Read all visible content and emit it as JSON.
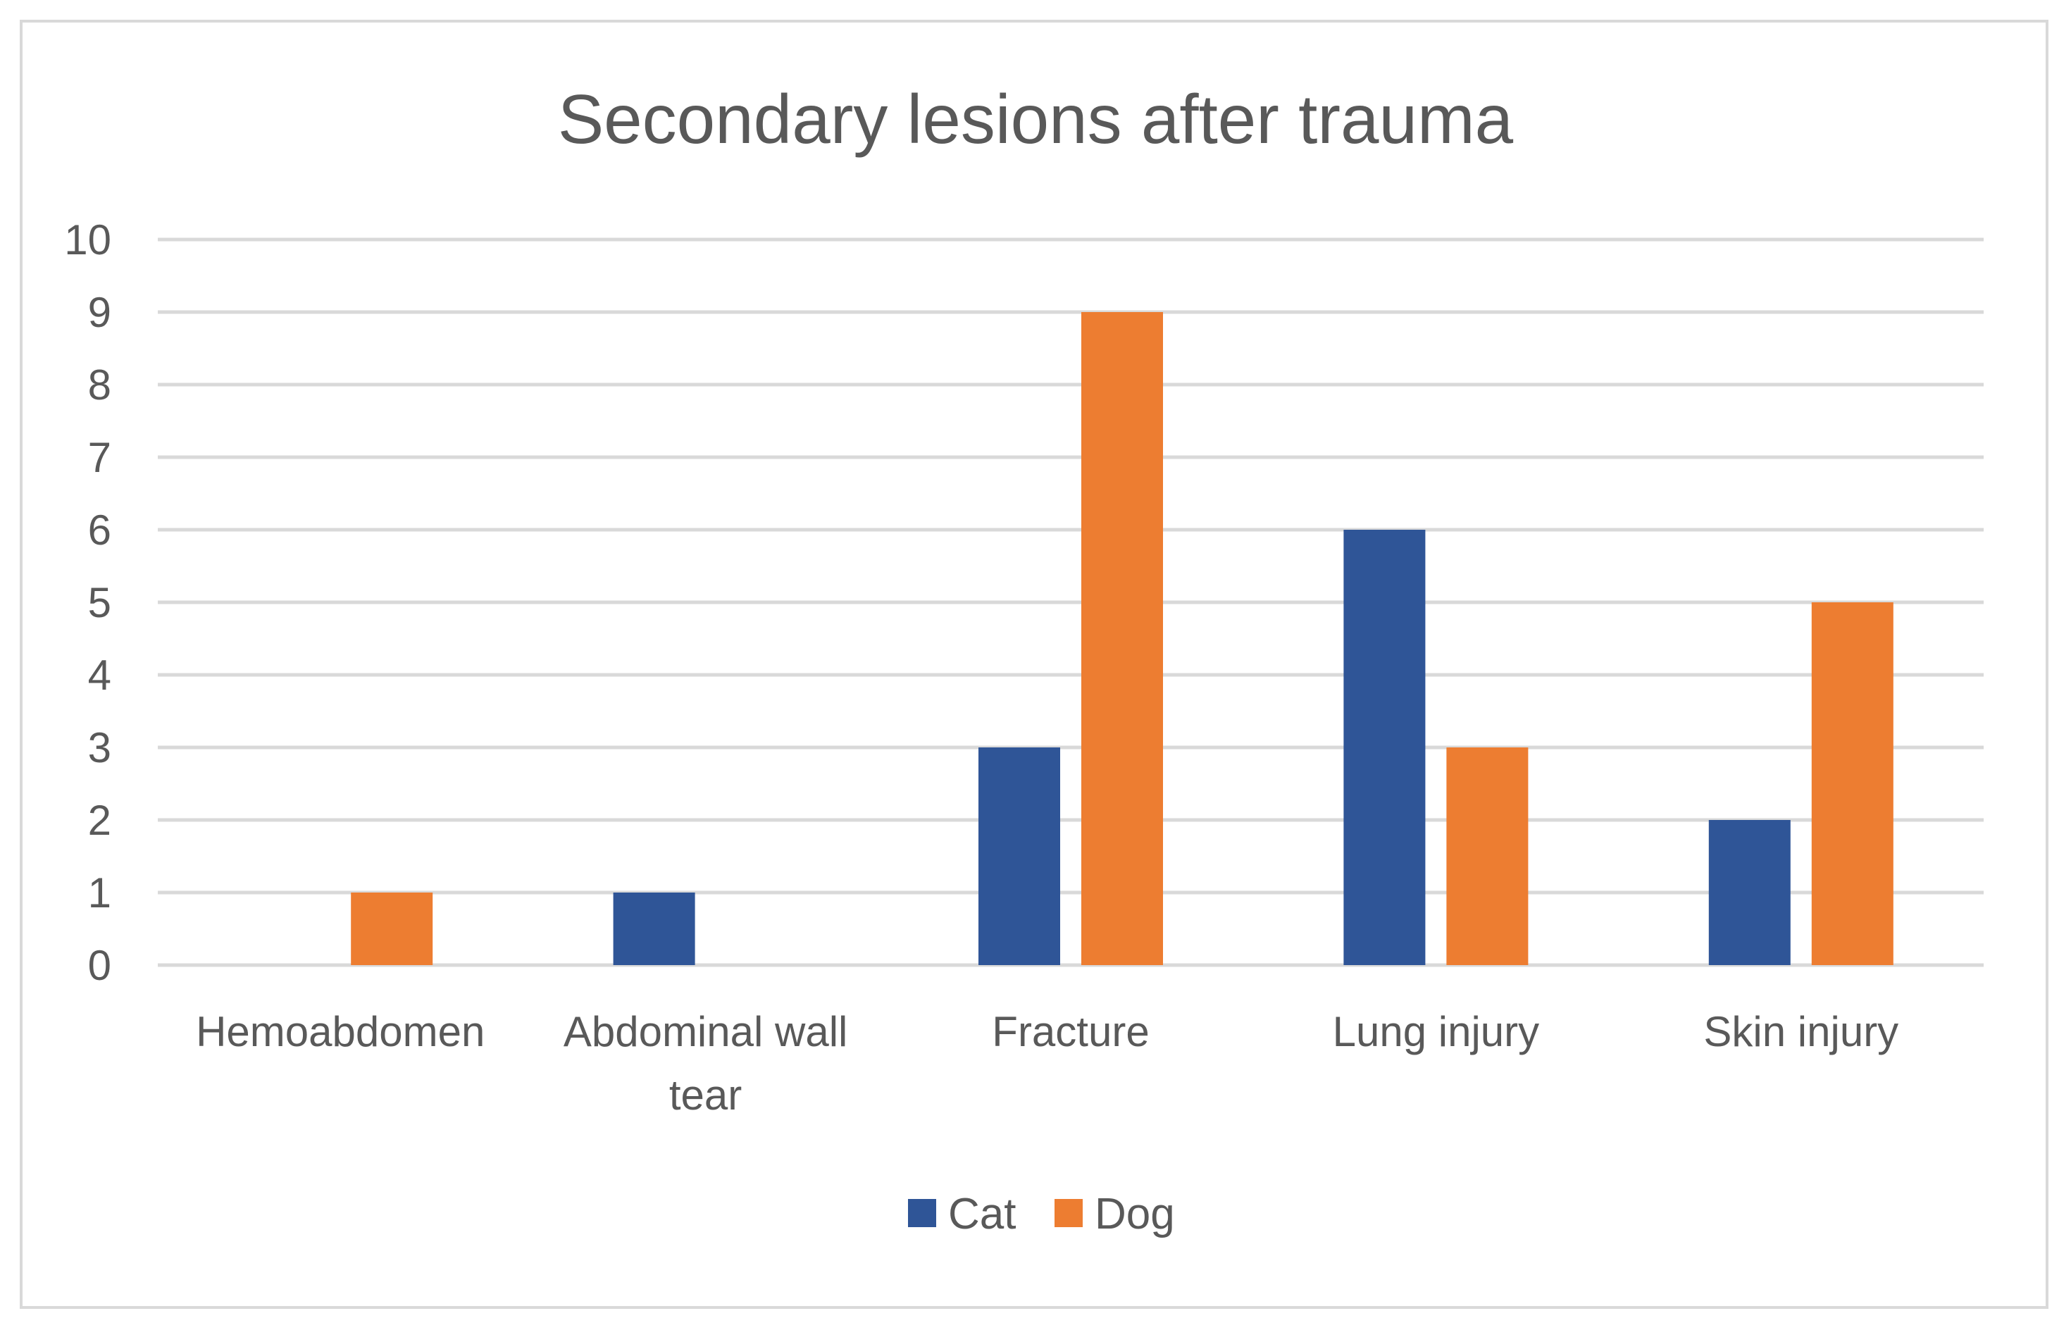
{
  "chart_data": {
    "type": "bar",
    "title": "Secondary lesions after trauma",
    "categories": [
      [
        "Hemoabdomen"
      ],
      [
        "Abdominal wall",
        "tear"
      ],
      [
        "Fracture"
      ],
      [
        "Lung injury"
      ],
      [
        "Skin injury"
      ]
    ],
    "series": [
      {
        "name": "Cat",
        "color": "#2f5597",
        "values": [
          0,
          1,
          3,
          6,
          2
        ]
      },
      {
        "name": "Dog",
        "color": "#ed7d31",
        "values": [
          1,
          0,
          9,
          3,
          5
        ]
      }
    ],
    "ylim": [
      0,
      10
    ],
    "yticks": [
      0,
      1,
      2,
      3,
      4,
      5,
      6,
      7,
      8,
      9,
      10
    ],
    "grid": true,
    "gridColor": "#d9d9d9",
    "legend": "bottom",
    "xlabel": "",
    "ylabel": ""
  }
}
